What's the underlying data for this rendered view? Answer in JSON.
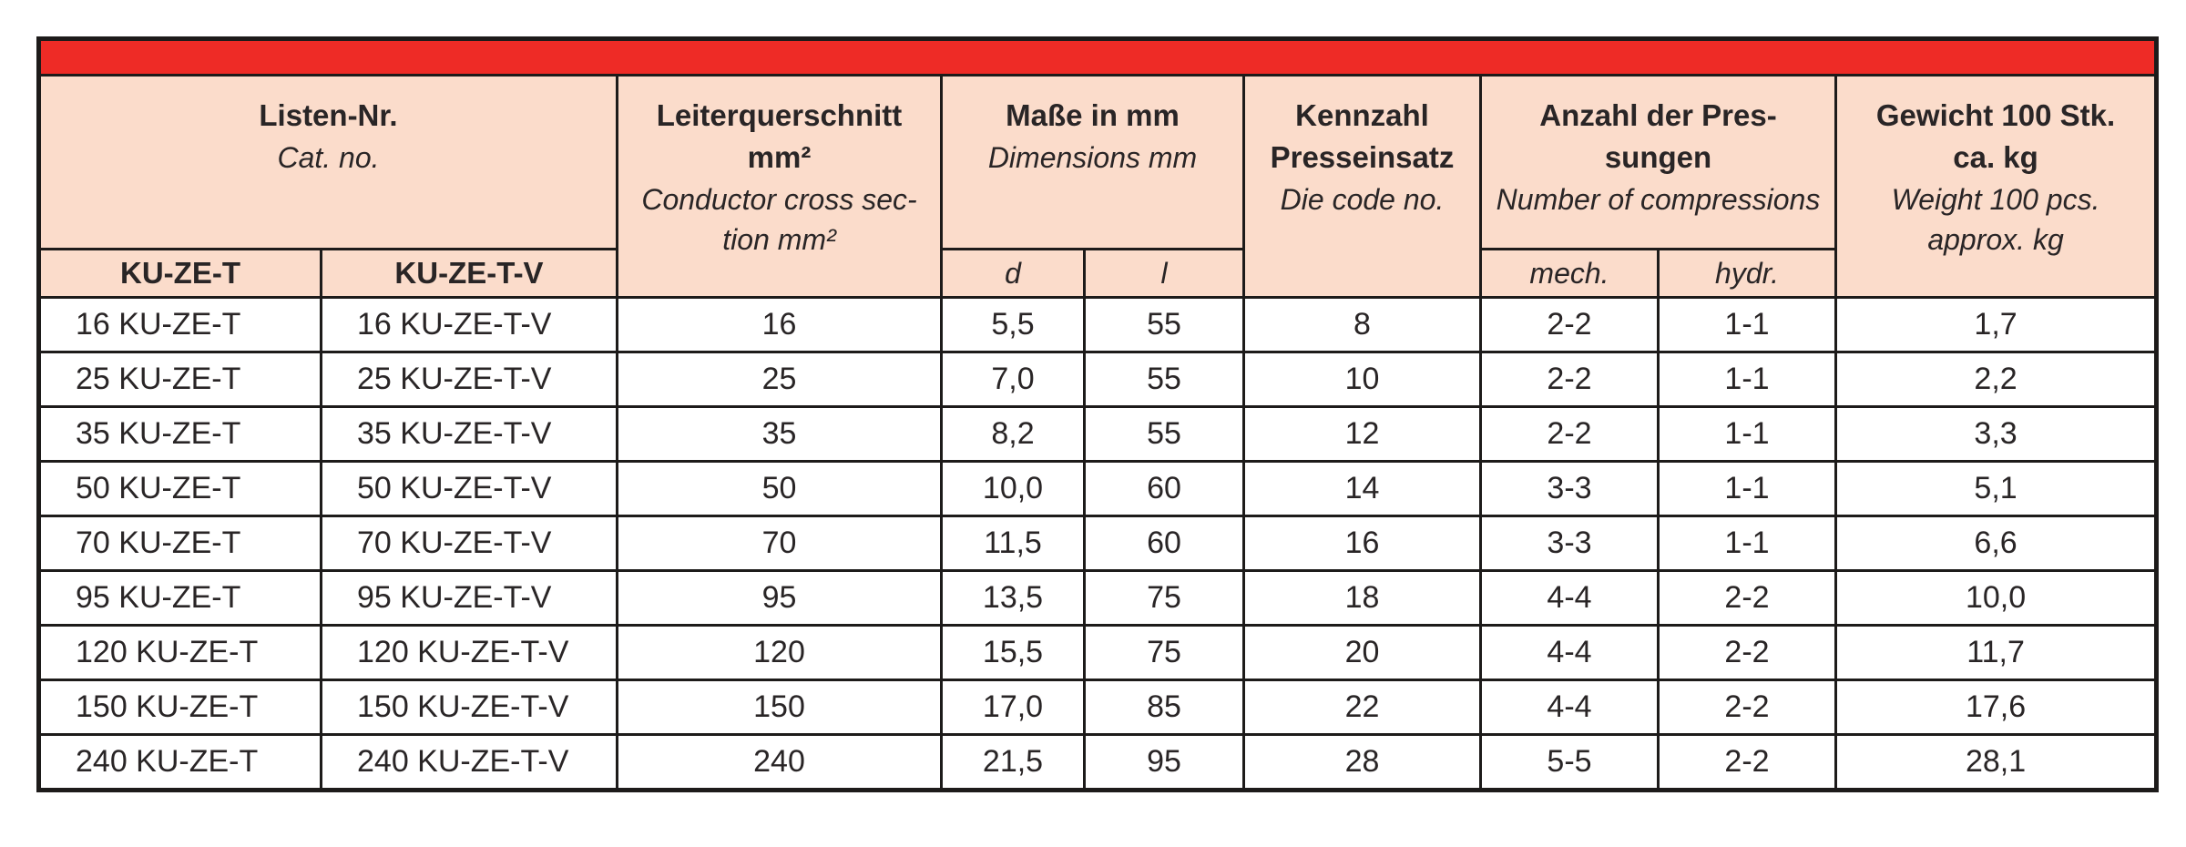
{
  "page": {
    "background_color": "#ffffff"
  },
  "table": {
    "accent_bar_color": "#ee2b26",
    "header_bg_color": "#fbdccb",
    "border_color": "#1d1b1a",
    "text_color": "#292526",
    "header_groups": [
      {
        "title": "Listen-Nr.",
        "subtitle": "Cat. no."
      },
      {
        "title": "Leiterquerschnitt\nmm²",
        "subtitle": "Conductor cross sec-\ntion mm²"
      },
      {
        "title": "Maße in mm",
        "subtitle": "Dimensions mm"
      },
      {
        "title": "Kennzahl\nPresseinsatz",
        "subtitle": "Die code no."
      },
      {
        "title": "Anzahl der Pres-\nsungen",
        "subtitle": "Number of compressions"
      },
      {
        "title": "Gewicht 100 Stk.\nca. kg",
        "subtitle": "Weight 100 pcs.\napprox. kg"
      }
    ],
    "subheaders": {
      "col1": "KU-ZE-T",
      "col2": "KU-ZE-T-V",
      "d": "d",
      "l": "l",
      "mech": "mech.",
      "hydr": "hydr."
    },
    "rows": [
      {
        "ku_ze_t": "16 KU-ZE-T",
        "ku_ze_t_v": "16 KU-ZE-T-V",
        "cross_section": "16",
        "d": "5,5",
        "l": "55",
        "die_code": "8",
        "mech": "2-2",
        "hydr": "1-1",
        "weight": "1,7"
      },
      {
        "ku_ze_t": "25 KU-ZE-T",
        "ku_ze_t_v": "25 KU-ZE-T-V",
        "cross_section": "25",
        "d": "7,0",
        "l": "55",
        "die_code": "10",
        "mech": "2-2",
        "hydr": "1-1",
        "weight": "2,2"
      },
      {
        "ku_ze_t": "35 KU-ZE-T",
        "ku_ze_t_v": "35 KU-ZE-T-V",
        "cross_section": "35",
        "d": "8,2",
        "l": "55",
        "die_code": "12",
        "mech": "2-2",
        "hydr": "1-1",
        "weight": "3,3"
      },
      {
        "ku_ze_t": "50 KU-ZE-T",
        "ku_ze_t_v": "50 KU-ZE-T-V",
        "cross_section": "50",
        "d": "10,0",
        "l": "60",
        "die_code": "14",
        "mech": "3-3",
        "hydr": "1-1",
        "weight": "5,1"
      },
      {
        "ku_ze_t": "70 KU-ZE-T",
        "ku_ze_t_v": "70 KU-ZE-T-V",
        "cross_section": "70",
        "d": "11,5",
        "l": "60",
        "die_code": "16",
        "mech": "3-3",
        "hydr": "1-1",
        "weight": "6,6"
      },
      {
        "ku_ze_t": "95 KU-ZE-T",
        "ku_ze_t_v": "95 KU-ZE-T-V",
        "cross_section": "95",
        "d": "13,5",
        "l": "75",
        "die_code": "18",
        "mech": "4-4",
        "hydr": "2-2",
        "weight": "10,0"
      },
      {
        "ku_ze_t": "120 KU-ZE-T",
        "ku_ze_t_v": "120 KU-ZE-T-V",
        "cross_section": "120",
        "d": "15,5",
        "l": "75",
        "die_code": "20",
        "mech": "4-4",
        "hydr": "2-2",
        "weight": "11,7"
      },
      {
        "ku_ze_t": "150 KU-ZE-T",
        "ku_ze_t_v": "150 KU-ZE-T-V",
        "cross_section": "150",
        "d": "17,0",
        "l": "85",
        "die_code": "22",
        "mech": "4-4",
        "hydr": "2-2",
        "weight": "17,6"
      },
      {
        "ku_ze_t": "240 KU-ZE-T",
        "ku_ze_t_v": "240 KU-ZE-T-V",
        "cross_section": "240",
        "d": "21,5",
        "l": "95",
        "die_code": "28",
        "mech": "5-5",
        "hydr": "2-2",
        "weight": "28,1"
      }
    ]
  }
}
